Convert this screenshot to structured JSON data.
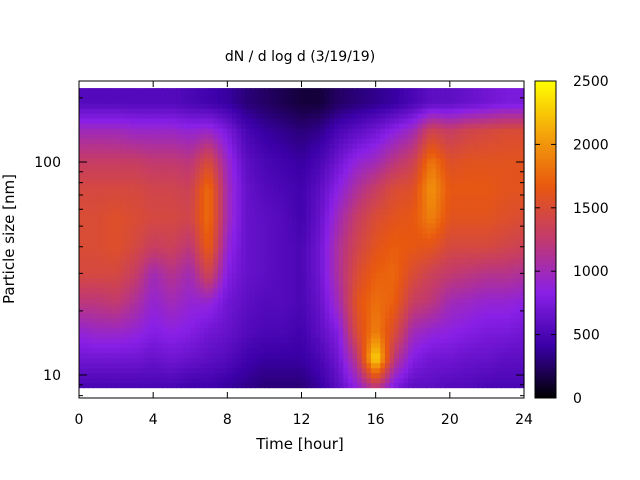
{
  "chart_data": {
    "type": "heatmap",
    "title": "dN / d log d (3/19/19)",
    "xlabel": "Time [hour]",
    "ylabel": "Particle size [nm]",
    "xlim": [
      0,
      24
    ],
    "ylim": [
      7.8,
      240
    ],
    "yscale": "log",
    "x_ticks": [
      0,
      4,
      8,
      12,
      16,
      20,
      24
    ],
    "x_tick_labels": [
      "0",
      "4",
      "8",
      "12",
      "16",
      "20",
      "24"
    ],
    "y_ticks": [
      10,
      100
    ],
    "y_tick_labels": [
      "10",
      "100"
    ],
    "colorbar": {
      "range": [
        0,
        2500
      ],
      "ticks": [
        0,
        500,
        1000,
        1500,
        2000,
        2500
      ],
      "tick_labels": [
        "0",
        "500",
        "1000",
        "1500",
        "2000",
        "2500"
      ],
      "colors": [
        "#000000",
        "#3b00a8",
        "#8a20e6",
        "#c23a6e",
        "#e8580f",
        "#f4a40a",
        "#ffff00"
      ]
    },
    "size_nm": [
      9,
      12,
      16,
      22,
      30,
      40,
      55,
      75,
      100,
      140,
      190
    ],
    "time_hour": [
      0,
      1,
      2,
      3,
      4,
      5,
      6,
      7,
      8,
      9,
      10,
      11,
      12,
      13,
      14,
      15,
      16,
      17,
      18,
      19,
      20,
      21,
      22,
      23,
      24
    ],
    "values": [
      [
        500,
        700,
        900,
        1200,
        1450,
        1500,
        1500,
        1450,
        1300,
        1000,
        550
      ],
      [
        500,
        700,
        950,
        1200,
        1450,
        1500,
        1500,
        1450,
        1300,
        1000,
        550
      ],
      [
        500,
        700,
        950,
        1250,
        1450,
        1550,
        1550,
        1450,
        1300,
        1000,
        550
      ],
      [
        500,
        700,
        900,
        1100,
        1300,
        1450,
        1500,
        1450,
        1300,
        950,
        550
      ],
      [
        500,
        650,
        800,
        900,
        1000,
        1300,
        1450,
        1400,
        1250,
        950,
        550
      ],
      [
        500,
        700,
        850,
        1000,
        1150,
        1350,
        1450,
        1400,
        1250,
        950,
        550
      ],
      [
        450,
        650,
        800,
        900,
        1000,
        1200,
        1400,
        1350,
        1200,
        900,
        500
      ],
      [
        450,
        600,
        700,
        900,
        1400,
        1700,
        1800,
        1800,
        1500,
        950,
        450
      ],
      [
        400,
        550,
        650,
        700,
        800,
        900,
        1000,
        1000,
        950,
        750,
        400
      ],
      [
        350,
        450,
        550,
        600,
        650,
        650,
        650,
        650,
        600,
        500,
        300
      ],
      [
        300,
        400,
        500,
        550,
        600,
        600,
        600,
        550,
        500,
        400,
        250
      ],
      [
        300,
        400,
        500,
        550,
        550,
        550,
        550,
        500,
        450,
        350,
        200
      ],
      [
        300,
        400,
        450,
        500,
        500,
        500,
        450,
        450,
        400,
        300,
        150
      ],
      [
        400,
        500,
        600,
        650,
        700,
        700,
        650,
        600,
        500,
        350,
        150
      ],
      [
        600,
        700,
        800,
        1000,
        1100,
        1100,
        1000,
        850,
        700,
        500,
        250
      ],
      [
        900,
        1200,
        1500,
        1600,
        1500,
        1400,
        1300,
        1100,
        900,
        600,
        300
      ],
      [
        1300,
        2400,
        1900,
        1800,
        1700,
        1600,
        1500,
        1300,
        1000,
        700,
        350
      ],
      [
        800,
        1200,
        1500,
        1700,
        1750,
        1700,
        1600,
        1500,
        1200,
        850,
        400
      ],
      [
        600,
        800,
        1000,
        1300,
        1500,
        1650,
        1650,
        1550,
        1350,
        1000,
        500
      ],
      [
        600,
        700,
        900,
        1200,
        1350,
        1600,
        1900,
        2000,
        1850,
        1400,
        600
      ],
      [
        550,
        700,
        850,
        1000,
        1250,
        1450,
        1600,
        1650,
        1550,
        1300,
        600
      ],
      [
        550,
        650,
        800,
        950,
        1200,
        1450,
        1600,
        1650,
        1600,
        1400,
        650
      ],
      [
        500,
        650,
        750,
        900,
        1150,
        1450,
        1600,
        1650,
        1600,
        1450,
        700
      ],
      [
        500,
        600,
        750,
        900,
        1150,
        1400,
        1550,
        1600,
        1600,
        1500,
        750
      ],
      [
        500,
        600,
        700,
        850,
        1100,
        1350,
        1500,
        1600,
        1600,
        1500,
        750
      ]
    ]
  }
}
